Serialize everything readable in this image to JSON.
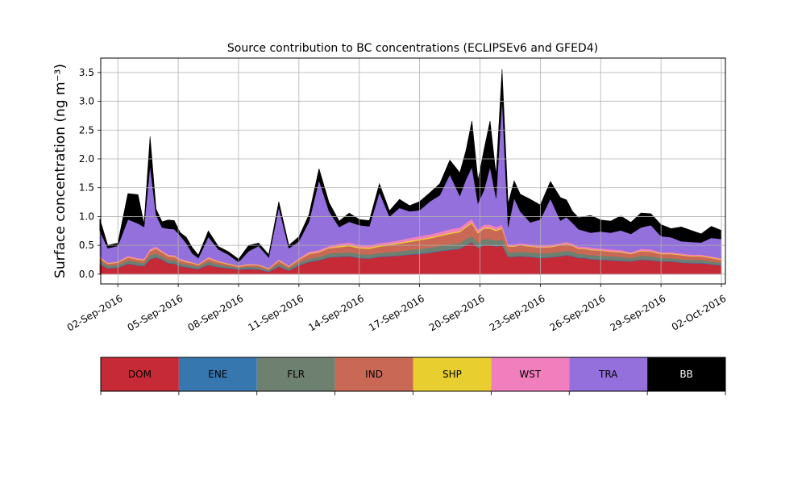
{
  "chart_data": {
    "type": "area",
    "stacked": true,
    "title": "Source contribution to BC concentrations (ECLIPSEv6 and GFED4)",
    "ylabel": "Surface concentration (ng m⁻³)",
    "xlabel": "",
    "ylim": [
      -0.17,
      3.75
    ],
    "xlim_days": [
      -0.85,
      30.2
    ],
    "yticks": [
      0.0,
      0.5,
      1.0,
      1.5,
      2.0,
      2.5,
      3.0,
      3.5
    ],
    "ytick_labels": [
      "0.0",
      "0.5",
      "1.0",
      "1.5",
      "2.0",
      "2.5",
      "3.0",
      "3.5"
    ],
    "xticks_days": [
      0,
      3,
      6,
      9,
      12,
      15,
      18,
      21,
      24,
      27,
      30
    ],
    "xtick_labels": [
      "02-Sep-2016",
      "05-Sep-2016",
      "08-Sep-2016",
      "11-Sep-2016",
      "14-Sep-2016",
      "17-Sep-2016",
      "20-Sep-2016",
      "23-Sep-2016",
      "26-Sep-2016",
      "29-Sep-2016",
      "02-Oct-2016"
    ],
    "grid": true,
    "x_days": [
      -0.9,
      -0.5,
      0,
      0.5,
      1,
      1.3,
      1.6,
      1.9,
      2.2,
      2.5,
      2.8,
      3.1,
      3.4,
      3.7,
      4,
      4.5,
      5,
      5.5,
      6,
      6.5,
      7,
      7.5,
      8,
      8.5,
      9,
      9.5,
      10,
      10.5,
      11,
      11.5,
      12,
      12.5,
      13,
      13.5,
      14,
      14.5,
      15,
      15.5,
      16,
      16.5,
      17,
      17.3,
      17.6,
      17.9,
      18.2,
      18.5,
      18.8,
      19.1,
      19.4,
      19.7,
      20,
      20.5,
      21,
      21.5,
      22,
      22.3,
      22.6,
      22.9,
      23.2,
      23.5,
      24,
      24.5,
      25,
      25.5,
      26,
      26.5,
      27,
      27.5,
      28,
      28.5,
      29,
      29.5,
      30
    ],
    "series": [
      {
        "name": "DOM",
        "color": "#c52a36",
        "values": [
          0.17,
          0.1,
          0.11,
          0.18,
          0.15,
          0.14,
          0.26,
          0.29,
          0.25,
          0.19,
          0.18,
          0.14,
          0.12,
          0.1,
          0.09,
          0.16,
          0.12,
          0.1,
          0.08,
          0.09,
          0.08,
          0.04,
          0.13,
          0.06,
          0.15,
          0.21,
          0.24,
          0.29,
          0.3,
          0.31,
          0.28,
          0.27,
          0.3,
          0.31,
          0.32,
          0.34,
          0.35,
          0.37,
          0.4,
          0.42,
          0.44,
          0.5,
          0.55,
          0.45,
          0.5,
          0.5,
          0.48,
          0.5,
          0.3,
          0.3,
          0.31,
          0.3,
          0.28,
          0.29,
          0.31,
          0.33,
          0.31,
          0.28,
          0.28,
          0.26,
          0.25,
          0.24,
          0.23,
          0.22,
          0.25,
          0.24,
          0.22,
          0.22,
          0.2,
          0.19,
          0.19,
          0.17,
          0.15
        ]
      },
      {
        "name": "ENE",
        "color": "#3777b0",
        "values": [
          0.01,
          0.01,
          0.01,
          0.01,
          0.01,
          0.01,
          0.01,
          0.01,
          0.01,
          0.01,
          0.01,
          0.01,
          0.01,
          0.01,
          0.01,
          0.01,
          0.01,
          0.01,
          0.01,
          0.01,
          0.01,
          0.01,
          0.01,
          0.01,
          0.01,
          0.01,
          0.01,
          0.01,
          0.01,
          0.01,
          0.01,
          0.01,
          0.01,
          0.01,
          0.01,
          0.01,
          0.01,
          0.01,
          0.01,
          0.01,
          0.01,
          0.01,
          0.01,
          0.01,
          0.01,
          0.01,
          0.01,
          0.01,
          0.01,
          0.01,
          0.01,
          0.01,
          0.01,
          0.01,
          0.01,
          0.01,
          0.01,
          0.01,
          0.01,
          0.01,
          0.01,
          0.01,
          0.01,
          0.01,
          0.01,
          0.01,
          0.01,
          0.01,
          0.01,
          0.01,
          0.01,
          0.01,
          0.01
        ]
      },
      {
        "name": "FLR",
        "color": "#6e8070",
        "values": [
          0.05,
          0.04,
          0.04,
          0.05,
          0.05,
          0.04,
          0.06,
          0.06,
          0.05,
          0.05,
          0.05,
          0.04,
          0.04,
          0.04,
          0.03,
          0.05,
          0.04,
          0.03,
          0.02,
          0.03,
          0.03,
          0.02,
          0.04,
          0.03,
          0.04,
          0.05,
          0.05,
          0.06,
          0.06,
          0.06,
          0.06,
          0.06,
          0.06,
          0.06,
          0.07,
          0.07,
          0.08,
          0.08,
          0.08,
          0.09,
          0.09,
          0.1,
          0.1,
          0.09,
          0.1,
          0.1,
          0.09,
          0.1,
          0.07,
          0.07,
          0.07,
          0.07,
          0.07,
          0.07,
          0.07,
          0.07,
          0.07,
          0.06,
          0.06,
          0.06,
          0.06,
          0.06,
          0.06,
          0.05,
          0.06,
          0.06,
          0.05,
          0.05,
          0.05,
          0.05,
          0.05,
          0.04,
          0.04
        ]
      },
      {
        "name": "IND",
        "color": "#c96955",
        "values": [
          0.05,
          0.03,
          0.04,
          0.05,
          0.04,
          0.05,
          0.07,
          0.08,
          0.07,
          0.06,
          0.06,
          0.05,
          0.04,
          0.04,
          0.03,
          0.05,
          0.04,
          0.03,
          0.02,
          0.03,
          0.03,
          0.02,
          0.05,
          0.03,
          0.05,
          0.08,
          0.08,
          0.09,
          0.1,
          0.11,
          0.1,
          0.1,
          0.11,
          0.12,
          0.13,
          0.14,
          0.15,
          0.16,
          0.17,
          0.18,
          0.19,
          0.2,
          0.22,
          0.16,
          0.18,
          0.18,
          0.17,
          0.18,
          0.1,
          0.1,
          0.11,
          0.1,
          0.1,
          0.1,
          0.11,
          0.11,
          0.1,
          0.09,
          0.09,
          0.09,
          0.09,
          0.08,
          0.08,
          0.07,
          0.08,
          0.08,
          0.07,
          0.07,
          0.07,
          0.06,
          0.06,
          0.06,
          0.05
        ]
      },
      {
        "name": "SHP",
        "color": "#e8cf2f",
        "values": [
          0.01,
          0.01,
          0.01,
          0.01,
          0.01,
          0.01,
          0.01,
          0.01,
          0.01,
          0.01,
          0.01,
          0.01,
          0.01,
          0.01,
          0.01,
          0.01,
          0.01,
          0.01,
          0.01,
          0.01,
          0.01,
          0.01,
          0.01,
          0.01,
          0.01,
          0.01,
          0.01,
          0.01,
          0.02,
          0.02,
          0.02,
          0.02,
          0.02,
          0.02,
          0.02,
          0.02,
          0.02,
          0.02,
          0.02,
          0.02,
          0.02,
          0.02,
          0.02,
          0.02,
          0.02,
          0.02,
          0.02,
          0.02,
          0.01,
          0.01,
          0.01,
          0.01,
          0.01,
          0.01,
          0.01,
          0.01,
          0.01,
          0.01,
          0.01,
          0.01,
          0.01,
          0.01,
          0.01,
          0.01,
          0.01,
          0.01,
          0.01,
          0.01,
          0.01,
          0.01,
          0.01,
          0.01,
          0.01
        ]
      },
      {
        "name": "WST",
        "color": "#f27fbd",
        "values": [
          0.02,
          0.01,
          0.01,
          0.02,
          0.02,
          0.02,
          0.03,
          0.03,
          0.02,
          0.02,
          0.02,
          0.02,
          0.02,
          0.01,
          0.01,
          0.02,
          0.01,
          0.01,
          0.01,
          0.01,
          0.01,
          0.01,
          0.02,
          0.01,
          0.02,
          0.03,
          0.03,
          0.03,
          0.04,
          0.04,
          0.04,
          0.04,
          0.04,
          0.04,
          0.04,
          0.05,
          0.05,
          0.05,
          0.05,
          0.06,
          0.06,
          0.06,
          0.06,
          0.05,
          0.05,
          0.05,
          0.05,
          0.05,
          0.03,
          0.03,
          0.03,
          0.03,
          0.03,
          0.03,
          0.03,
          0.03,
          0.03,
          0.03,
          0.03,
          0.03,
          0.03,
          0.03,
          0.03,
          0.02,
          0.03,
          0.03,
          0.02,
          0.02,
          0.02,
          0.02,
          0.02,
          0.02,
          0.02
        ]
      },
      {
        "name": "TRA",
        "color": "#9370db",
        "values": [
          0.45,
          0.25,
          0.27,
          0.63,
          0.6,
          0.55,
          1.45,
          0.55,
          0.4,
          0.45,
          0.45,
          0.4,
          0.3,
          0.15,
          0.1,
          0.35,
          0.2,
          0.15,
          0.06,
          0.22,
          0.32,
          0.18,
          0.9,
          0.3,
          0.29,
          0.52,
          1.21,
          0.6,
          0.29,
          0.36,
          0.34,
          0.33,
          0.88,
          0.44,
          0.56,
          0.46,
          0.45,
          0.57,
          0.64,
          0.95,
          0.55,
          0.75,
          0.9,
          0.45,
          0.6,
          1.0,
          0.5,
          2.2,
          0.3,
          0.8,
          0.55,
          0.38,
          0.45,
          0.8,
          0.39,
          0.43,
          0.36,
          0.3,
          0.27,
          0.26,
          0.29,
          0.29,
          0.34,
          0.32,
          0.37,
          0.42,
          0.28,
          0.26,
          0.21,
          0.22,
          0.21,
          0.32,
          0.33
        ]
      },
      {
        "name": "BB",
        "color": "#000000",
        "values": [
          0.2,
          0.05,
          0.05,
          0.45,
          0.5,
          0.05,
          0.5,
          0.1,
          0.1,
          0.15,
          0.15,
          0.05,
          0.1,
          0.1,
          0.05,
          0.1,
          0.05,
          0.05,
          0.05,
          0.1,
          0.05,
          0.05,
          0.1,
          0.05,
          0.08,
          0.12,
          0.2,
          0.15,
          0.1,
          0.15,
          0.1,
          0.1,
          0.15,
          0.1,
          0.15,
          0.1,
          0.15,
          0.15,
          0.2,
          0.25,
          0.4,
          0.5,
          0.8,
          0.4,
          0.7,
          0.8,
          0.4,
          0.5,
          0.4,
          0.3,
          0.3,
          0.4,
          0.25,
          0.3,
          0.4,
          0.3,
          0.2,
          0.2,
          0.25,
          0.3,
          0.2,
          0.2,
          0.25,
          0.2,
          0.25,
          0.2,
          0.2,
          0.15,
          0.25,
          0.2,
          0.15,
          0.2,
          0.15
        ]
      }
    ]
  }
}
